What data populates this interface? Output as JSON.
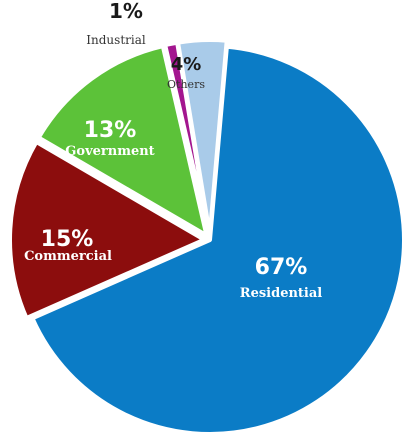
{
  "chart_data": {
    "type": "pie",
    "title": "",
    "slices": [
      {
        "label": "Residential",
        "percent_label": "67%",
        "value": 67,
        "color": "#0b7cc6"
      },
      {
        "label": "Commercial",
        "percent_label": "15%",
        "value": 15,
        "color": "#8c0d0d"
      },
      {
        "label": "Government",
        "percent_label": "13%",
        "value": 13,
        "color": "#5cc239"
      },
      {
        "label": "Industrial",
        "percent_label": "1%",
        "value": 1,
        "color": "#a3168f"
      },
      {
        "label": "Others",
        "percent_label": "4%",
        "value": 4,
        "color": "#a9cbe9"
      }
    ],
    "start_angle_deg": 5,
    "direction": "clockwise",
    "exploded": true,
    "slice_border_color": "#ffffff"
  }
}
